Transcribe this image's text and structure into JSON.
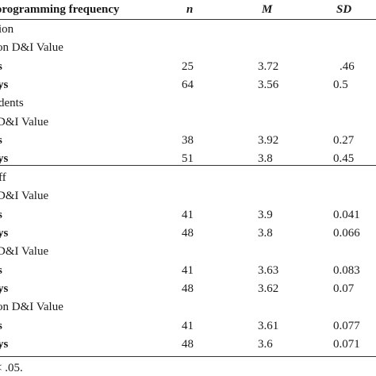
{
  "header": {
    "label": "programming frequency",
    "n": "n",
    "m": "M",
    "sd": "SD"
  },
  "rows": [
    {
      "label": "ion",
      "n": "",
      "m": "",
      "sd": "",
      "kind": "section"
    },
    {
      "label": "on D&I Value",
      "n": "",
      "m": "",
      "sd": "",
      "kind": "sub"
    },
    {
      "label": "s",
      "n": "25",
      "m": "3.72",
      "sd": ".46",
      "kind": "data"
    },
    {
      "label": "ys",
      "n": "64",
      "m": "3.56",
      "sd": "0.5",
      "kind": "data"
    },
    {
      "label": "dents",
      "n": "",
      "m": "",
      "sd": "",
      "kind": "section"
    },
    {
      "label": "D&I Value",
      "n": "",
      "m": "",
      "sd": "",
      "kind": "sub"
    },
    {
      "label": "s",
      "n": "38",
      "m": "3.92",
      "sd": "0.27",
      "kind": "data"
    },
    {
      "label": "ys",
      "n": "51",
      "m": "3.8",
      "sd": "0.45",
      "kind": "data"
    },
    {
      "label": "ff",
      "n": "",
      "m": "",
      "sd": "",
      "kind": "section"
    },
    {
      "label": "D&I Value",
      "n": "",
      "m": "",
      "sd": "",
      "kind": "sub"
    },
    {
      "label": "s",
      "n": "41",
      "m": "3.9",
      "sd": "0.041",
      "kind": "data"
    },
    {
      "label": "ys",
      "n": "48",
      "m": "3.8",
      "sd": "0.066",
      "kind": "data"
    },
    {
      "label": "D&I Value",
      "n": "",
      "m": "",
      "sd": "",
      "kind": "sub"
    },
    {
      "label": "s",
      "n": "41",
      "m": "3.63",
      "sd": "0.083",
      "kind": "data"
    },
    {
      "label": "ys",
      "n": "48",
      "m": "3.62",
      "sd": "0.07",
      "kind": "data"
    },
    {
      "label": "on D&I Value",
      "n": "",
      "m": "",
      "sd": "",
      "kind": "sub"
    },
    {
      "label": "s",
      "n": "41",
      "m": "3.61",
      "sd": "0.077",
      "kind": "data"
    },
    {
      "label": "ys",
      "n": "48",
      "m": "3.6",
      "sd": "0.071",
      "kind": "data"
    }
  ],
  "footnote": "< .05."
}
